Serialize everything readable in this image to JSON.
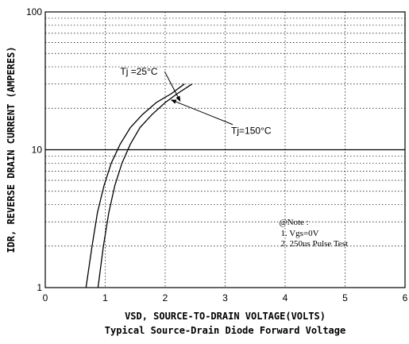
{
  "chart_data": {
    "type": "line",
    "title": "",
    "subtitle": "Typical Source-Drain Diode Forward Voltage",
    "xlabel": "VSD, SOURCE-TO-DRAIN VOLTAGE(VOLTS)",
    "ylabel": "IDR, REVERSE DRAIN CURRENT (AMPERES)",
    "xlim": [
      0,
      6
    ],
    "ylim": [
      1,
      100
    ],
    "yscale": "log",
    "grid": true,
    "x_ticks": [
      "0",
      "1",
      "2",
      "3",
      "4",
      "5",
      "6"
    ],
    "y_ticks": [
      "1",
      "10",
      "100"
    ],
    "series": [
      {
        "name": "Tj=25°C",
        "x": [
          0.88,
          0.97,
          1.06,
          1.16,
          1.28,
          1.42,
          1.58,
          1.78,
          2.0,
          2.2,
          2.45
        ],
        "y": [
          1.0,
          2.0,
          3.5,
          5.5,
          8.0,
          11.0,
          14.5,
          18.0,
          22.0,
          25.5,
          30.0
        ]
      },
      {
        "name": "Tj=150°C",
        "x": [
          0.68,
          0.78,
          0.87,
          0.98,
          1.1,
          1.25,
          1.42,
          1.62,
          1.85,
          2.1,
          2.32
        ],
        "y": [
          1.0,
          2.0,
          3.5,
          5.5,
          8.0,
          11.0,
          14.5,
          18.0,
          22.0,
          25.5,
          30.0
        ]
      }
    ],
    "annotations": [
      {
        "text": "Tj =25°C",
        "arrow_to_x": 2.25,
        "arrow_to_y": 22.5,
        "text_x": 1.25,
        "text_y": 35
      },
      {
        "text": "Tj=150°C",
        "arrow_to_x": 2.1,
        "arrow_to_y": 23,
        "text_x": 3.1,
        "text_y": 13
      }
    ],
    "note": {
      "title": "@Note :",
      "lines": [
        "1. Vgs=0V",
        "2. 250us Pulse Test"
      ]
    }
  }
}
